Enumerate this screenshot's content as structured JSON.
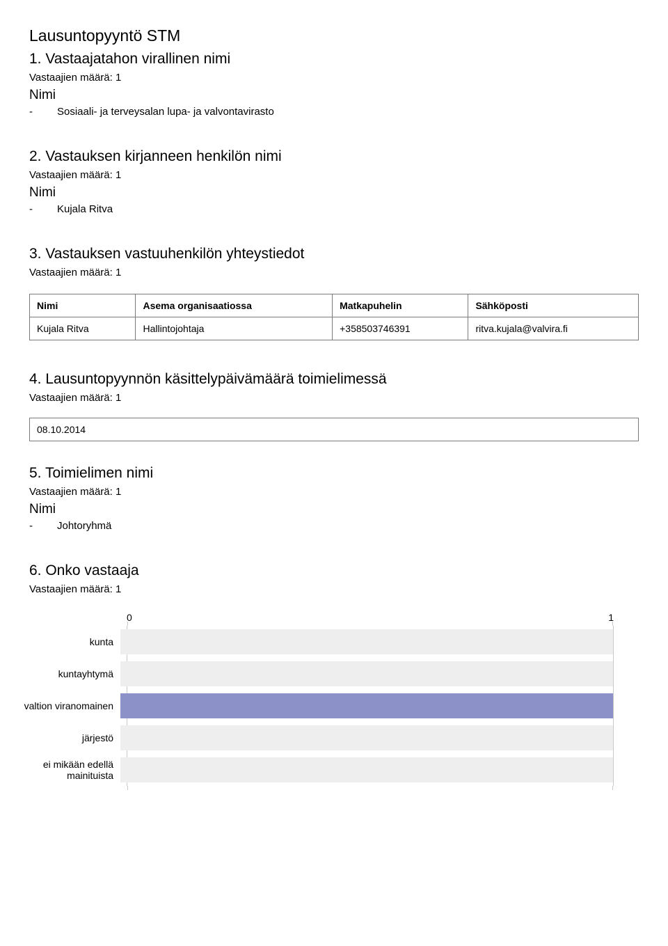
{
  "doc_title": "Lausuntopyyntö STM",
  "sections": {
    "s1": {
      "heading": "1. Vastaajatahon virallinen nimi",
      "count": "Vastaajien määrä: 1",
      "nimi": "Nimi",
      "value": "Sosiaali- ja terveysalan lupa- ja valvontavirasto"
    },
    "s2": {
      "heading": "2. Vastauksen kirjanneen henkilön nimi",
      "count": "Vastaajien määrä: 1",
      "nimi": "Nimi",
      "value": "Kujala Ritva"
    },
    "s3": {
      "heading": "3. Vastauksen vastuuhenkilön yhteystiedot",
      "count": "Vastaajien määrä: 1",
      "cols": {
        "c1": "Nimi",
        "c2": "Asema organisaatiossa",
        "c3": "Matkapuhelin",
        "c4": "Sähköposti"
      },
      "row": {
        "c1": "Kujala Ritva",
        "c2": "Hallintojohtaja",
        "c3": "+358503746391",
        "c4": "ritva.kujala@valvira.fi"
      }
    },
    "s4": {
      "heading": "4. Lausuntopyynnön käsittelypäivämäärä toimielimessä",
      "count": "Vastaajien määrä: 1",
      "value": "08.10.2014"
    },
    "s5": {
      "heading": "5. Toimielimen nimi",
      "count": "Vastaajien määrä: 1",
      "nimi": "Nimi",
      "value": "Johtoryhmä"
    },
    "s6": {
      "heading": "6. Onko vastaaja",
      "count": "Vastaajien määrä: 1",
      "axis": {
        "min": "0",
        "max": "1"
      },
      "track_bg": "#eeeeee",
      "bar_color": "#8c91c7",
      "categories": {
        "r1": {
          "label": "kunta",
          "value": 0
        },
        "r2": {
          "label": "kuntayhtymä",
          "value": 0
        },
        "r3": {
          "label": "valtion viranomainen",
          "value": 1
        },
        "r4": {
          "label": "järjestö",
          "value": 0
        },
        "r5": {
          "label": "ei mikään edellä mainituista",
          "value": 0
        }
      }
    }
  }
}
